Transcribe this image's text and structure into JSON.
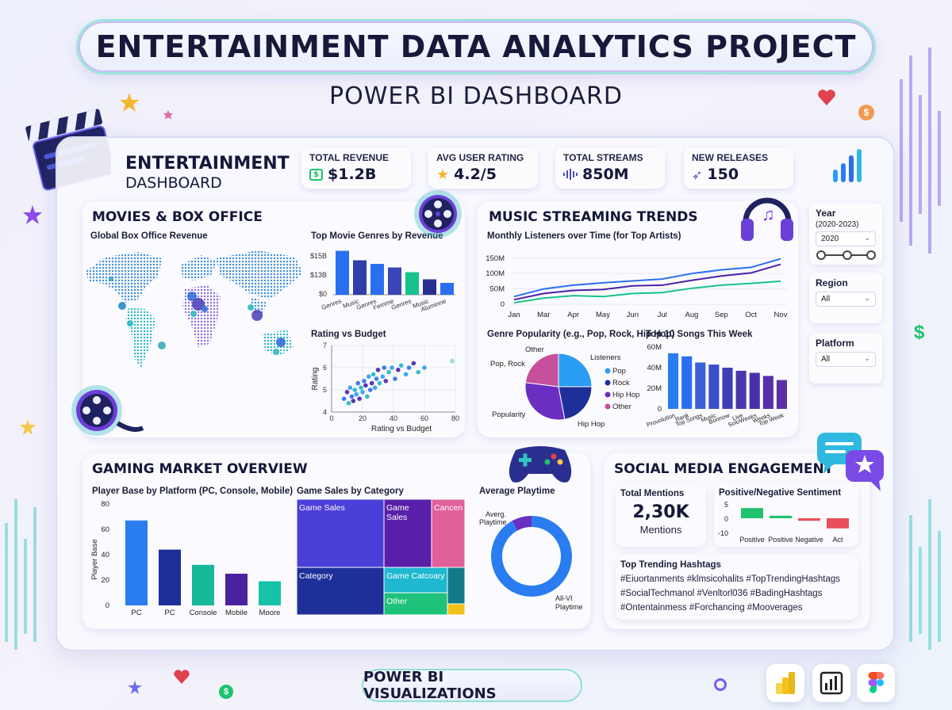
{
  "header": {
    "title": "ENTERTAINMENT DATA ANALYTICS PROJECT",
    "subtitle": "POWER BI DASHBOARD"
  },
  "dashboard": {
    "title_line1": "ENTERTAINMENT",
    "title_line2": "DASHBOARD"
  },
  "kpis": [
    {
      "label": "TOTAL REVENUE",
      "value": "$1.2B",
      "icon": "money-icon"
    },
    {
      "label": "AVG USER RATING",
      "value": "4.2/5",
      "icon": "star-icon"
    },
    {
      "label": "TOTAL STREAMS",
      "value": "850M",
      "icon": "sound-wave-icon"
    },
    {
      "label": "NEW RELEASES",
      "value": "150",
      "icon": "rocket-icon"
    }
  ],
  "filters": {
    "year": {
      "label": "Year",
      "range": "(2020-2023)",
      "selected": "2020",
      "slider_value": 0.5
    },
    "region": {
      "label": "Region",
      "selected": "All"
    },
    "platform": {
      "label": "Platform",
      "selected": "All"
    }
  },
  "movies": {
    "title": "MOVIES & BOX OFFICE",
    "map_label": "Global Box Office Revenue",
    "genres_title": "Top Movie Genres by Revenue",
    "scatter_title": "Rating vs Budget"
  },
  "music": {
    "title": "MUSIC STREAMING TRENDS",
    "line_title": "Monthly Listeners over Time (for Top Artists)",
    "pie_title": "Genre Popularity (e.g., Pop, Rock, Hip Hop)",
    "songs_title": "Top 10 Songs This Week"
  },
  "gaming": {
    "title": "GAMING MARKET OVERVIEW",
    "bar_title": "Player Base by Platform (PC, Console, Mobile)",
    "treemap_title": "Game Sales by Category",
    "donut_title": "Average Playtime"
  },
  "social": {
    "title": "SOCIAL MEDIA ENGAGEMENT",
    "mentions_label": "Total Mentions",
    "mentions_value": "2,30K",
    "mentions_unit": "Mentions",
    "sentiment_title": "Positive/Negative Sentiment",
    "hashtags_title": "Top Trending Hashtags",
    "hashtag_lines": [
      "#Eiuortanments  #klmsicohalits  #TopTrendingHashtags",
      "#SocialTechmanol  #Venltorl036  #BadingHashtags",
      "#Ontentainmess  #Forchancing  #Mooverages"
    ]
  },
  "footer": {
    "label": "POWER BI VISUALIZATIONS"
  },
  "chart_data": [
    {
      "type": "bar",
      "title": "Top Movie Genres by Revenue",
      "categories": [
        "Genres",
        "Music",
        "Genres",
        "Femme",
        "Genres",
        "Music",
        "Aluminne"
      ],
      "values": [
        18.5,
        14.5,
        13,
        11.5,
        9.5,
        6.5,
        5
      ],
      "yticks": [
        "$15B",
        "$13B",
        "$0"
      ],
      "colors": [
        "#2a6ff0",
        "#2f3ea8",
        "#2a6ff0",
        "#3a46b8",
        "#16c28e",
        "#2a2f8f",
        "#2a6ff0"
      ]
    },
    {
      "type": "scatter",
      "title": "Rating vs Budget",
      "xlabel": "Rating vs Budget",
      "ylabel": "Rating",
      "xlim": [
        0,
        80
      ],
      "ylim": [
        4,
        7
      ],
      "xticks": [
        0,
        20,
        40,
        60,
        80
      ],
      "yticks": [
        4,
        5,
        6,
        7
      ],
      "points": [
        [
          8,
          4.6
        ],
        [
          10,
          4.9
        ],
        [
          11,
          4.4
        ],
        [
          12,
          5.1
        ],
        [
          13,
          4.7
        ],
        [
          14,
          4.5
        ],
        [
          15,
          5.0
        ],
        [
          16,
          4.8
        ],
        [
          17,
          5.3
        ],
        [
          18,
          4.6
        ],
        [
          19,
          5.1
        ],
        [
          20,
          4.9
        ],
        [
          21,
          5.4
        ],
        [
          22,
          5.2
        ],
        [
          23,
          4.7
        ],
        [
          24,
          5.6
        ],
        [
          25,
          5.0
        ],
        [
          26,
          5.3
        ],
        [
          27,
          5.7
        ],
        [
          28,
          5.1
        ],
        [
          29,
          5.5
        ],
        [
          30,
          5.9
        ],
        [
          31,
          5.3
        ],
        [
          33,
          5.6
        ],
        [
          34,
          6.0
        ],
        [
          35,
          5.4
        ],
        [
          37,
          5.8
        ],
        [
          39,
          6.0
        ],
        [
          41,
          5.5
        ],
        [
          43,
          5.9
        ],
        [
          45,
          6.1
        ],
        [
          48,
          5.7
        ],
        [
          50,
          6.0
        ],
        [
          53,
          6.2
        ],
        [
          56,
          5.8
        ],
        [
          60,
          6.0
        ],
        [
          78,
          6.3
        ]
      ]
    },
    {
      "type": "line",
      "title": "Monthly Listeners over Time (for Top Artists)",
      "categories": [
        "Jan",
        "Mar",
        "Apr",
        "May",
        "Jun",
        "Jul",
        "Aug",
        "Sep",
        "Oct",
        "Nov"
      ],
      "yticks": [
        "150M",
        "100M",
        "50M",
        "0"
      ],
      "ylim": [
        0,
        170
      ],
      "series": [
        {
          "values": [
            25,
            50,
            62,
            70,
            76,
            82,
            100,
            112,
            120,
            148
          ],
          "color": "#2a6ff0"
        },
        {
          "values": [
            15,
            35,
            45,
            48,
            60,
            62,
            78,
            92,
            102,
            130
          ],
          "color": "#4a1fa8"
        },
        {
          "values": [
            5,
            20,
            28,
            25,
            35,
            38,
            52,
            62,
            68,
            75
          ],
          "color": "#16c28e"
        }
      ]
    },
    {
      "type": "pie",
      "title": "Genre Popularity (e.g., Pop, Rock, Hip Hop)",
      "legend_title": "Listeners",
      "labels": [
        "Pop",
        "Rock",
        "Hip Hop",
        "Other"
      ],
      "values": [
        25,
        22,
        30,
        23
      ],
      "colors": [
        "#2a9df4",
        "#1f2f9a",
        "#6a2fc0",
        "#c84f9b"
      ],
      "outer_labels": [
        "Listeners",
        "Hip Hop",
        "Popularity",
        "Pop, Rock",
        "Other"
      ]
    },
    {
      "type": "bar",
      "title": "Top 10 Songs This Week",
      "yticks": [
        "60M",
        "40M",
        "20M",
        "0"
      ],
      "ylim": [
        0,
        60
      ],
      "categories": [
        "Provolution",
        "Rank",
        "Top Songs",
        "Music",
        "Bonnow",
        "Live",
        "SoloWeeks",
        "Weeks",
        "Top Week"
      ],
      "values": [
        54,
        51,
        45,
        43,
        40,
        37,
        35,
        32,
        28
      ],
      "colors": [
        "#2a7df0",
        "#2a6ff0",
        "#3a5fd8",
        "#3b4ec9",
        "#3c3fb8",
        "#4b36b0",
        "#4a30a8",
        "#5530a8",
        "#5a2fa8"
      ]
    },
    {
      "type": "bar",
      "title": "Player Base by Platform (PC, Console, Mobile)",
      "ylabel": "Player Base",
      "ylim": [
        0,
        80
      ],
      "yticks": [
        80,
        60,
        40,
        20,
        0
      ],
      "categories": [
        "PC",
        "PC",
        "Console",
        "Mobile",
        "Moore"
      ],
      "values": [
        67,
        44,
        32,
        25,
        19
      ],
      "colors": [
        "#2a7df0",
        "#1f2f9a",
        "#18b89a",
        "#4a22a0",
        "#16c2a8"
      ]
    },
    {
      "type": "heatmap",
      "title": "Game Sales by Category",
      "cells": [
        {
          "label": "Game Sales",
          "color": "#4a3fd8"
        },
        {
          "label": "Game\nSales",
          "color": "#5a1fa8"
        },
        {
          "label": "Cancen",
          "color": "#e0609a"
        },
        {
          "label": "Category",
          "color": "#1f2f9a"
        },
        {
          "label": "Game Catcoary",
          "color": "#1fb8d0"
        },
        {
          "label": "",
          "color": "#137a8a"
        },
        {
          "label": "Other",
          "color": "#1ec27a"
        },
        {
          "label": "",
          "color": "#f2c21a"
        }
      ]
    },
    {
      "type": "pie",
      "title": "Average Playtime",
      "labels": [
        "Averg. Playtime",
        "All-VI Playtime"
      ],
      "values": [
        92,
        8
      ],
      "colors": [
        "#2a7df0",
        "#6a2fc0"
      ]
    },
    {
      "type": "bar",
      "title": "Positive/Negative Sentiment",
      "yticks": [
        5,
        0,
        -10
      ],
      "ylim": [
        -10,
        5
      ],
      "categories": [
        "Positive",
        "Positive",
        "Negative",
        "Act"
      ],
      "values": [
        4,
        1,
        -1,
        -4
      ],
      "colors": [
        "#1fc26e",
        "#1fc26e",
        "#e8505a",
        "#e8505a"
      ]
    }
  ]
}
